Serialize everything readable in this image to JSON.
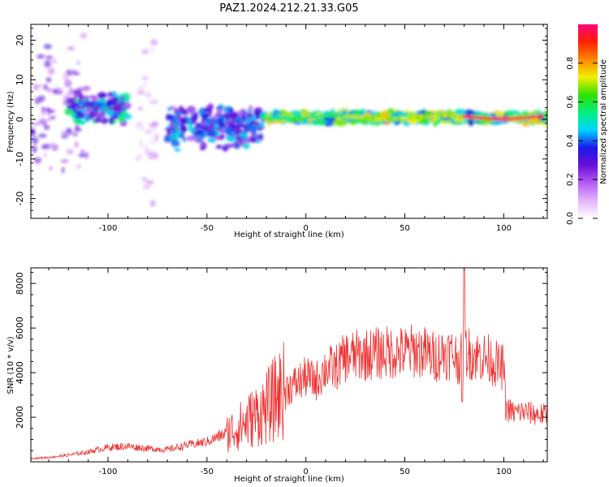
{
  "figure": {
    "title": "PAZ1.2024.212.21.33.G05"
  },
  "chart_data": [
    {
      "type": "heatmap",
      "xlabel": "Height of straight line (km)",
      "ylabel": "Frequency (Hz)",
      "xlim": [
        -139,
        122
      ],
      "ylim": [
        -25,
        24
      ],
      "xticks": [
        -100,
        -50,
        0,
        50,
        100
      ],
      "yticks": [
        -20,
        -10,
        0,
        10,
        20
      ],
      "colorbar": {
        "label": "Normalized spectral amplitude",
        "range": [
          0,
          1
        ],
        "ticks": [
          0.0,
          0.2,
          0.4,
          0.6,
          0.8
        ],
        "colormap": [
          "#ffffff",
          "#e3b5ff",
          "#b45cf5",
          "#6a0fd8",
          "#1a1ae6",
          "#00d4ff",
          "#00f080",
          "#30e000",
          "#f0f000",
          "#ff8800",
          "#ff2000",
          "#ff0080"
        ]
      },
      "description_bands": [
        {
          "x": [
            -139,
            -110
          ],
          "freq_center": 3,
          "freq_spread": 20,
          "amp": 0.25
        },
        {
          "x": [
            -120,
            -90
          ],
          "freq_center": 3,
          "freq_spread": 4,
          "amp": 0.45
        },
        {
          "x": [
            -85,
            -75
          ],
          "freq_center": 0,
          "freq_spread": 24,
          "amp": 0.12
        },
        {
          "x": [
            -70,
            -22
          ],
          "freq_center": -2,
          "freq_spread": 6,
          "amp": 0.38
        },
        {
          "x": [
            -22,
            122
          ],
          "freq_center": 0.5,
          "freq_spread": 1.5,
          "amp": 0.6
        }
      ]
    },
    {
      "type": "line",
      "xlabel": "Height of straight line (km)",
      "ylabel": "SNR (10 * v/v)",
      "xlim": [
        -139,
        122
      ],
      "ylim": [
        0,
        8700
      ],
      "xticks": [
        -100,
        -50,
        0,
        50,
        100
      ],
      "yticks": [
        2000,
        4000,
        6000,
        8000
      ],
      "color": "#ee3333",
      "x": [
        -139,
        -130,
        -120,
        -110,
        -100,
        -90,
        -80,
        -70,
        -60,
        -50,
        -40,
        -35,
        -30,
        -25,
        -20,
        -15,
        -10,
        -5,
        0,
        5,
        10,
        15,
        20,
        30,
        40,
        50,
        55,
        60,
        65,
        70,
        75,
        78,
        80,
        82,
        85,
        90,
        95,
        98,
        100,
        101,
        105,
        110,
        115,
        122
      ],
      "y": [
        150,
        200,
        300,
        450,
        650,
        700,
        600,
        550,
        750,
        900,
        1300,
        1500,
        1800,
        2100,
        2400,
        2900,
        3300,
        3500,
        3800,
        3600,
        4200,
        4200,
        4700,
        4800,
        4900,
        4900,
        5000,
        4900,
        4700,
        4900,
        4800,
        4500,
        5000,
        4900,
        4800,
        4700,
        4500,
        4200,
        4300,
        2400,
        2200,
        2250,
        2150,
        2100
      ]
    }
  ]
}
